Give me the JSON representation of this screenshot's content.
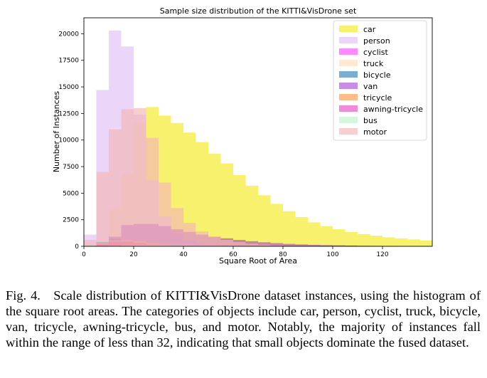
{
  "chart_data": {
    "type": "bar",
    "title": "Sample size distribution of the KITTI&VisDrone set",
    "xlabel": "Square Root of Area",
    "ylabel": "Number of Instances",
    "xlim": [
      0,
      140
    ],
    "ylim": [
      0,
      21500
    ],
    "bin_width": 5,
    "xticks": [
      "0",
      "20",
      "40",
      "60",
      "80",
      "100",
      "120"
    ],
    "yticks": [
      "0",
      "2500",
      "5000",
      "7500",
      "10000",
      "12500",
      "15000",
      "17500",
      "20000"
    ],
    "legend_position": "top-right",
    "series": [
      {
        "name": "car",
        "color": "#f3ea1e",
        "opacity": 0.65,
        "bin_start": 0,
        "values": [
          0,
          0,
          3600,
          6800,
          11600,
          13100,
          12300,
          11600,
          10700,
          9800,
          8700,
          7800,
          6700,
          5700,
          4800,
          4000,
          3300,
          2750,
          2250,
          1900,
          1600,
          1350,
          1150,
          1000,
          850,
          750,
          650,
          550
        ]
      },
      {
        "name": "person",
        "color": "#e2c3f7",
        "opacity": 0.7,
        "bin_start": 0,
        "values": [
          1100,
          14700,
          20300,
          18800,
          12400,
          6200,
          2800,
          1200,
          500,
          200,
          80,
          30
        ]
      },
      {
        "name": "cyclist",
        "color": "#ff3fff",
        "opacity": 0.6,
        "bin_start": 0,
        "values": [
          0,
          300,
          500,
          500,
          400,
          250,
          150,
          80,
          40,
          20
        ]
      },
      {
        "name": "truck",
        "color": "#ffd9b8",
        "opacity": 0.6,
        "bin_start": 0,
        "values": [
          0,
          0,
          100,
          200,
          300,
          350,
          350,
          350,
          300,
          280,
          250,
          220,
          200,
          180,
          150,
          130,
          110,
          100,
          90,
          80,
          70,
          60,
          50,
          40,
          30,
          20,
          15,
          10
        ]
      },
      {
        "name": "bicycle",
        "color": "#1f77b4",
        "opacity": 0.6,
        "bin_start": 0,
        "values": [
          0,
          400,
          700,
          500,
          300,
          150,
          80,
          40
        ]
      },
      {
        "name": "van",
        "color": "#9932cc",
        "opacity": 0.55,
        "bin_start": 0,
        "values": [
          0,
          200,
          900,
          2000,
          2100,
          2100,
          1900,
          1600,
          1350,
          1100,
          900,
          750,
          600,
          480,
          380,
          300,
          230,
          180,
          140,
          110,
          90,
          70,
          50,
          40,
          30,
          20,
          15,
          10
        ]
      },
      {
        "name": "tricycle",
        "color": "#ff9f5a",
        "opacity": 0.7,
        "bin_start": 0,
        "values": [
          0,
          300,
          600,
          600,
          500,
          300,
          150,
          70,
          30
        ]
      },
      {
        "name": "awning-tricycle",
        "color": "#e23fbf",
        "opacity": 0.6,
        "bin_start": 0,
        "values": [
          0,
          200,
          400,
          400,
          300,
          200,
          100,
          50
        ]
      },
      {
        "name": "bus",
        "color": "#b9f2c9",
        "opacity": 0.6,
        "bin_start": 0,
        "values": [
          0,
          0,
          50,
          100,
          120,
          120,
          110,
          100,
          90,
          80,
          70,
          60,
          50,
          40,
          30,
          25,
          20
        ]
      },
      {
        "name": "motor",
        "color": "#f4b6b6",
        "opacity": 0.65,
        "bin_start": 0,
        "values": [
          600,
          7000,
          11000,
          12900,
          13000,
          10200,
          6000,
          3600,
          2200,
          1400,
          900,
          600,
          400,
          250,
          150,
          80,
          40
        ]
      }
    ]
  },
  "caption": "Fig. 4. Scale distribution of KITTI&VisDrone dataset instances, using the histogram of the square root areas. The categories of objects include car, person, cyclist, truck, bicycle, van, tricycle, awning-tricycle, bus, and motor. Notably, the majority of instances fall within the range of less than 32, indicating that small objects dominate the fused dataset."
}
